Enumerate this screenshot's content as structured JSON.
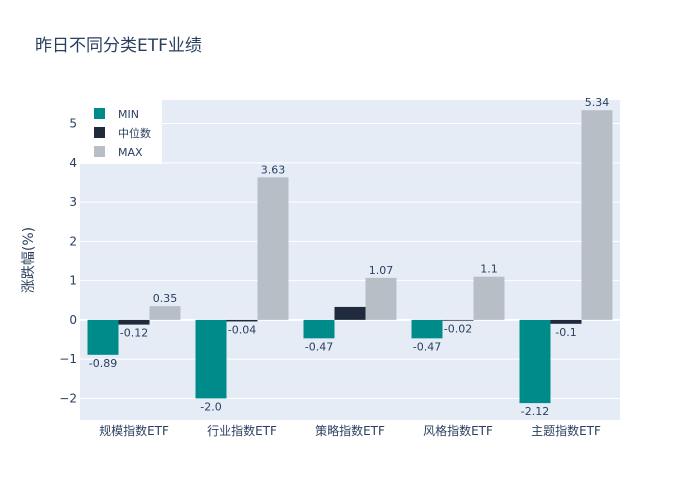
{
  "chart_data": {
    "type": "bar",
    "title": "昨日不同分类ETF业绩",
    "xlabel": "",
    "ylabel": "涨跌幅(%)",
    "ylim": [
      -2.55,
      5.6
    ],
    "yticks": [
      -2,
      -1,
      0,
      1,
      2,
      3,
      4,
      5
    ],
    "ytick_labels": [
      "−2",
      "−1",
      "0",
      "1",
      "2",
      "3",
      "4",
      "5"
    ],
    "categories": [
      "规模指数ETF",
      "行业指数ETF",
      "策略指数ETF",
      "风格指数ETF",
      "主题指数ETF"
    ],
    "series": [
      {
        "name": "MIN",
        "color": "#008b8b",
        "values": [
          -0.89,
          -2.0,
          -0.47,
          -0.47,
          -2.12
        ],
        "labels": [
          "-0.89",
          "-2.0",
          "-0.47",
          "-0.47",
          "-2.12"
        ]
      },
      {
        "name": "中位数",
        "color": "#1f2a3c",
        "values": [
          -0.12,
          -0.04,
          0.33,
          -0.02,
          -0.1
        ],
        "labels": [
          "-0.12",
          "-0.04",
          "",
          "-0.02",
          "-0.1"
        ]
      },
      {
        "name": "MAX",
        "color": "#b8bec6",
        "values": [
          0.35,
          3.63,
          1.07,
          1.1,
          5.34
        ],
        "labels": [
          "0.35",
          "3.63",
          "1.07",
          "1.1",
          "5.34"
        ]
      }
    ],
    "legend": "top-left",
    "plot_bg": "#e5ecf6"
  }
}
